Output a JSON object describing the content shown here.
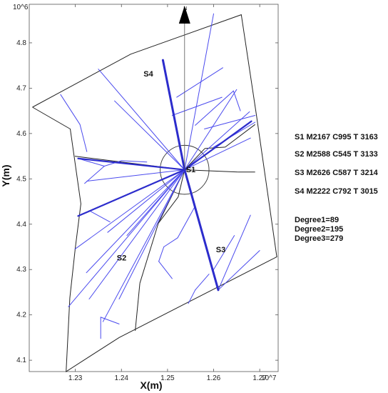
{
  "chart_data": {
    "type": "line",
    "xlabel": "X(m)",
    "ylabel": "Y(m)",
    "x_exponent": "10^7",
    "y_exponent": "10^6",
    "xlim": [
      12200000,
      12740000
    ],
    "ylim": [
      4075000,
      4885000
    ],
    "x_ticks": [
      {
        "value": 12300000,
        "label": "1.23"
      },
      {
        "value": 12400000,
        "label": "1.24"
      },
      {
        "value": 12500000,
        "label": "1.25"
      },
      {
        "value": 12600000,
        "label": "1.26"
      },
      {
        "value": 12700000,
        "label": "1.27"
      }
    ],
    "y_ticks": [
      {
        "value": 4100000,
        "label": "4.1"
      },
      {
        "value": 4200000,
        "label": "4.2"
      },
      {
        "value": 4300000,
        "label": "4.3"
      },
      {
        "value": 4400000,
        "label": "4.4"
      },
      {
        "value": 4500000,
        "label": "4.5"
      },
      {
        "value": 4600000,
        "label": "4.6"
      },
      {
        "value": 4700000,
        "label": "4.7"
      },
      {
        "value": 4800000,
        "label": "4.8"
      }
    ],
    "grid": false,
    "north_label": "N",
    "north_x": 12537000,
    "center": {
      "x": 12537000,
      "y": 4520000
    },
    "circle_radius": 53000,
    "boundary": [
      [
        12207000,
        4658000
      ],
      [
        12289000,
        4610000
      ],
      [
        12312000,
        4445000
      ],
      [
        12300000,
        4348000
      ],
      [
        12288000,
        4237000
      ],
      [
        12280000,
        4075000
      ],
      [
        12395000,
        4150000
      ],
      [
        12737000,
        4328000
      ],
      [
        12693000,
        4640000
      ],
      [
        12660000,
        4862000
      ],
      [
        12420000,
        4775000
      ],
      [
        12207000,
        4658000
      ]
    ],
    "district_lines": [
      [
        [
          12537000,
          4520000
        ],
        [
          12299000,
          4550000
        ]
      ],
      [
        [
          12537000,
          4520000
        ],
        [
          12653000,
          4515000
        ]
      ],
      [
        [
          12653000,
          4515000
        ],
        [
          12690000,
          4515000
        ]
      ],
      [
        [
          12537000,
          4520000
        ],
        [
          12581000,
          4567000
        ]
      ],
      [
        [
          12581000,
          4567000
        ],
        [
          12625000,
          4570000
        ]
      ],
      [
        [
          12625000,
          4570000
        ],
        [
          12690000,
          4620000
        ]
      ],
      [
        [
          12537000,
          4520000
        ],
        [
          12480000,
          4402000
        ]
      ],
      [
        [
          12480000,
          4402000
        ],
        [
          12440000,
          4270000
        ]
      ],
      [
        [
          12440000,
          4270000
        ],
        [
          12430000,
          4165000
        ]
      ],
      [
        [
          12537000,
          4520000
        ],
        [
          12523000,
          4460000
        ]
      ],
      [
        [
          12523000,
          4460000
        ],
        [
          12480000,
          4402000
        ]
      ]
    ],
    "series": [
      {
        "name": "S1",
        "color": "#2c2ccc",
        "width": 3,
        "lines": [
          [
            [
              12537000,
              4520000
            ],
            [
              12490000,
              4762000
            ]
          ]
        ]
      },
      {
        "name": "S2",
        "color": "#2c2ccc",
        "width": 2.2,
        "lines": [
          [
            [
              12537000,
              4520000
            ],
            [
              12306000,
              4545000
            ]
          ],
          [
            [
              12537000,
              4520000
            ],
            [
              12306000,
              4418000
            ]
          ]
        ]
      },
      {
        "name": "S3",
        "color": "#2c2ccc",
        "width": 3,
        "lines": [
          [
            [
              12537000,
              4520000
            ],
            [
              12610000,
              4255000
            ]
          ]
        ]
      },
      {
        "name": "S4",
        "color": "#2c2ccc",
        "width": 2.2,
        "lines": [
          [
            [
              12537000,
              4520000
            ],
            [
              12682000,
              4627000
            ]
          ]
        ]
      },
      {
        "name": "branches",
        "color": "#4a4aee",
        "width": 1,
        "lines": [
          [
            [
              12537000,
              4520000
            ],
            [
              12600000,
              4864000
            ]
          ],
          [
            [
              12537000,
              4520000
            ],
            [
              12385000,
              4672000
            ]
          ],
          [
            [
              12537000,
              4520000
            ],
            [
              12350000,
              4742000
            ]
          ],
          [
            [
              12537000,
              4520000
            ],
            [
              12650000,
              4697000
            ]
          ],
          [
            [
              12537000,
              4520000
            ],
            [
              12678000,
              4648000
            ]
          ],
          [
            [
              12537000,
              4520000
            ],
            [
              12680000,
              4590000
            ]
          ],
          [
            [
              12537000,
              4520000
            ],
            [
              12325000,
              4495000
            ]
          ],
          [
            [
              12537000,
              4520000
            ],
            [
              12299000,
              4345000
            ]
          ],
          [
            [
              12537000,
              4520000
            ],
            [
              12324000,
              4293000
            ]
          ],
          [
            [
              12537000,
              4520000
            ],
            [
              12370000,
              4382000
            ]
          ],
          [
            [
              12537000,
              4520000
            ],
            [
              12412000,
              4375000
            ]
          ],
          [
            [
              12537000,
              4520000
            ],
            [
              12395000,
              4235000
            ]
          ],
          [
            [
              12537000,
              4520000
            ],
            [
              12360000,
              4185000
            ]
          ],
          [
            [
              12537000,
              4520000
            ],
            [
              12330000,
              4235000
            ]
          ],
          [
            [
              12537000,
              4520000
            ],
            [
              12285000,
              4218000
            ]
          ],
          [
            [
              12306000,
              4545000
            ],
            [
              12363000,
              4528000
            ]
          ],
          [
            [
              12363000,
              4528000
            ],
            [
              12320000,
              4490000
            ]
          ],
          [
            [
              12363000,
              4528000
            ],
            [
              12400000,
              4540000
            ]
          ],
          [
            [
              12400000,
              4540000
            ],
            [
              12455000,
              4537000
            ]
          ],
          [
            [
              12268000,
              4686000
            ],
            [
              12310000,
              4620000
            ]
          ],
          [
            [
              12310000,
              4620000
            ],
            [
              12325000,
              4560000
            ]
          ],
          [
            [
              12610000,
              4255000
            ],
            [
              12700000,
              4342000
            ]
          ],
          [
            [
              12610000,
              4255000
            ],
            [
              12680000,
              4420000
            ]
          ],
          [
            [
              12600000,
              4300000
            ],
            [
              12645000,
              4375000
            ]
          ],
          [
            [
              12560000,
              4440000
            ],
            [
              12522000,
              4370000
            ]
          ],
          [
            [
              12522000,
              4370000
            ],
            [
              12492000,
              4350000
            ]
          ],
          [
            [
              12492000,
              4350000
            ],
            [
              12481000,
              4318000
            ]
          ],
          [
            [
              12481000,
              4318000
            ],
            [
              12510000,
              4280000
            ]
          ],
          [
            [
              12590000,
              4290000
            ],
            [
              12560000,
              4255000
            ]
          ],
          [
            [
              12560000,
              4255000
            ],
            [
              12545000,
              4225000
            ]
          ],
          [
            [
              12355000,
              4195000
            ],
            [
              12355000,
              4148000
            ]
          ],
          [
            [
              12355000,
              4195000
            ],
            [
              12395000,
              4180000
            ]
          ],
          [
            [
              12330000,
              4430000
            ],
            [
              12375000,
              4405000
            ]
          ],
          [
            [
              12600000,
              4570000
            ],
            [
              12690000,
              4625000
            ]
          ],
          [
            [
              12580000,
              4610000
            ],
            [
              12690000,
              4640000
            ]
          ],
          [
            [
              12560000,
              4618000
            ],
            [
              12643000,
              4694000
            ]
          ],
          [
            [
              12643000,
              4694000
            ],
            [
              12658000,
              4650000
            ]
          ],
          [
            [
              12520000,
              4680000
            ],
            [
              12620000,
              4745000
            ]
          ],
          [
            [
              12510000,
              4640000
            ],
            [
              12618000,
              4680000
            ]
          ]
        ]
      }
    ],
    "annotations": [
      {
        "text": "S1",
        "x": 12540000,
        "y": 4515000
      },
      {
        "text": "S2",
        "x": 12390000,
        "y": 4320000
      },
      {
        "text": "S3",
        "x": 12605000,
        "y": 4338000
      },
      {
        "text": "S4",
        "x": 12448000,
        "y": 4726000
      }
    ]
  },
  "info_lines": [
    "S1  M2167  C995  T  3163",
    "S2  M2588  C545  T  3133",
    "S3  M2626  C587  T  3214",
    "S4  M2222  C792  T  3015"
  ],
  "degree_lines": [
    "Degree1=89",
    "Degree2=195",
    "Degree3=279"
  ]
}
